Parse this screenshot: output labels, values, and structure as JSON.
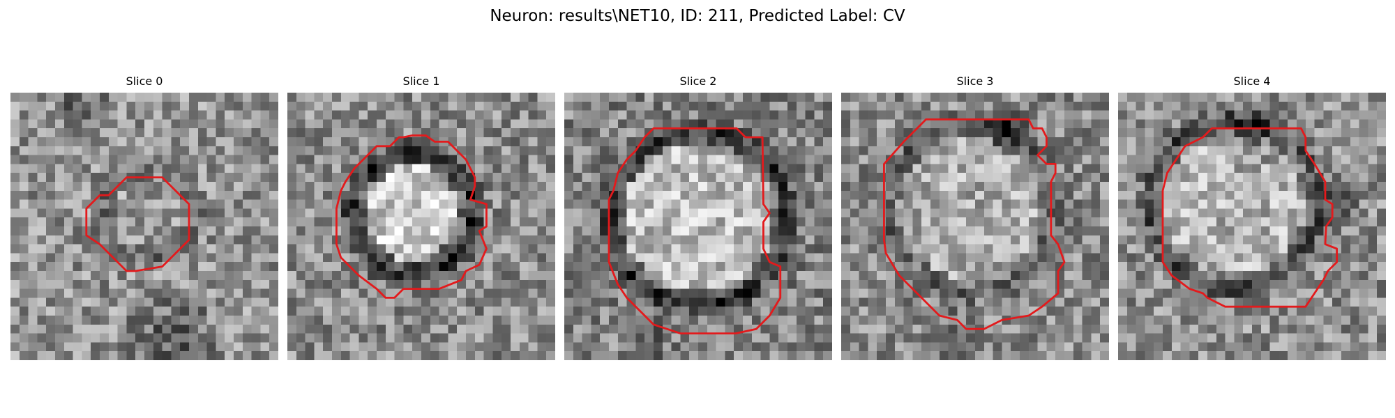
{
  "figure": {
    "title": "Neuron: results\\NET10, ID: 211, Predicted Label: CV"
  },
  "panels": [
    {
      "title": "Slice 0"
    },
    {
      "title": "Slice 1"
    },
    {
      "title": "Slice 2"
    },
    {
      "title": "Slice 3"
    },
    {
      "title": "Slice 4"
    }
  ],
  "colors": {
    "contour": "#e31a1c",
    "background": "#ffffff"
  }
}
